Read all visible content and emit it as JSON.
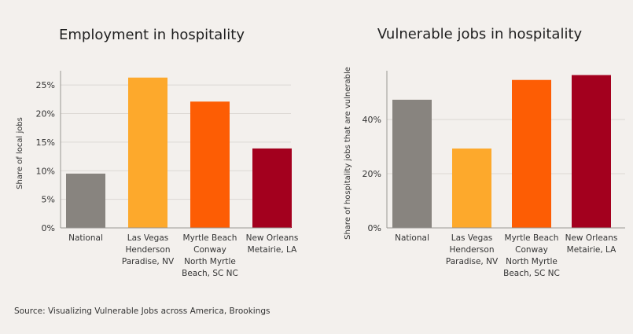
{
  "colors": [
    "#88847f",
    "#fda92c",
    "#fd5d04",
    "#a3001e"
  ],
  "chart_data": [
    {
      "type": "bar",
      "title": "Employment in hospitality",
      "ylabel": "Share of local jobs",
      "xlabel": "",
      "categories": [
        [
          "National"
        ],
        [
          "Las Vegas",
          "Henderson",
          "Paradise, NV"
        ],
        [
          "Myrtle Beach",
          "Conway",
          "North Myrtle",
          "Beach, SC NC"
        ],
        [
          "New Orleans",
          "Metairie, LA"
        ]
      ],
      "values": [
        9.5,
        26.3,
        22.1,
        13.9
      ],
      "ylim": [
        0,
        27.5
      ],
      "yticks": [
        0,
        5,
        10,
        15,
        20,
        25
      ],
      "ytick_labels": [
        "0%",
        "5%",
        "10%",
        "15%",
        "20%",
        "25%"
      ],
      "grid": true
    },
    {
      "type": "bar",
      "title": "Vulnerable jobs in hospitality",
      "ylabel": "Share of hospitality jobs that are vulnerable",
      "xlabel": "",
      "categories": [
        [
          "National"
        ],
        [
          "Las Vegas",
          "Henderson",
          "Paradise, NV"
        ],
        [
          "Myrtle Beach",
          "Conway",
          "North Myrtle",
          "Beach, SC NC"
        ],
        [
          "New Orleans",
          "Metairie, LA"
        ]
      ],
      "values": [
        47.3,
        29.3,
        54.6,
        56.4
      ],
      "ylim": [
        0,
        58
      ],
      "yticks": [
        0,
        20,
        40
      ],
      "ytick_labels": [
        "0%",
        "20%",
        "40%"
      ],
      "grid": true
    }
  ],
  "source": "Source: Visualizing Vulnerable Jobs across America, Brookings"
}
